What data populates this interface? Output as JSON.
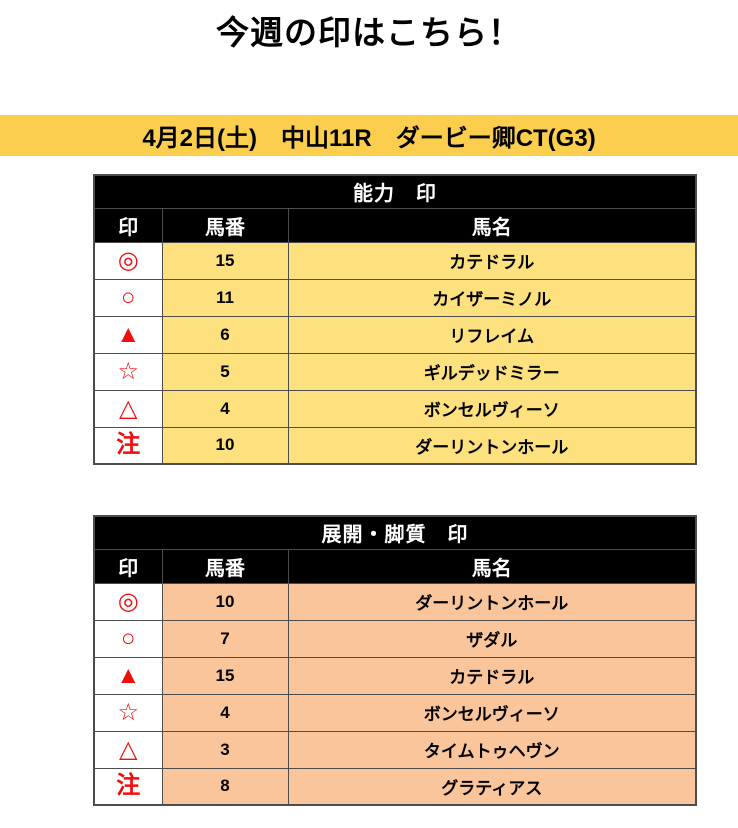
{
  "page": {
    "title": "今週の印はこちら！",
    "banner": "4月2日(土)　中山11R　ダービー卿CT(G3)"
  },
  "colors": {
    "banner_bg": "#FBCE4E",
    "table1_row_bg": "#FCE17E",
    "table2_row_bg": "#FBC59B",
    "mark_red": "#F20D0D",
    "header_bg": "#000000",
    "header_text": "#FFFFFF",
    "border": "#4D4D4D"
  },
  "columns": {
    "mark": "印",
    "number": "馬番",
    "name": "馬名"
  },
  "tables": [
    {
      "title": "能力　印",
      "rows": [
        {
          "mark": "◎",
          "number": "15",
          "name": "カテドラル"
        },
        {
          "mark": "○",
          "number": "11",
          "name": "カイザーミノル"
        },
        {
          "mark": "▲",
          "number": "6",
          "name": "リフレイム"
        },
        {
          "mark": "☆",
          "number": "5",
          "name": "ギルデッドミラー"
        },
        {
          "mark": "△",
          "number": "4",
          "name": "ボンセルヴィーソ"
        },
        {
          "mark": "注",
          "number": "10",
          "name": "ダーリントンホール"
        }
      ]
    },
    {
      "title": "展開・脚質　印",
      "rows": [
        {
          "mark": "◎",
          "number": "10",
          "name": "ダーリントンホール"
        },
        {
          "mark": "○",
          "number": "7",
          "name": "ザダル"
        },
        {
          "mark": "▲",
          "number": "15",
          "name": "カテドラル"
        },
        {
          "mark": "☆",
          "number": "4",
          "name": "ボンセルヴィーソ"
        },
        {
          "mark": "△",
          "number": "3",
          "name": "タイムトゥヘヴン"
        },
        {
          "mark": "注",
          "number": "8",
          "name": "グラティアス"
        }
      ]
    }
  ]
}
